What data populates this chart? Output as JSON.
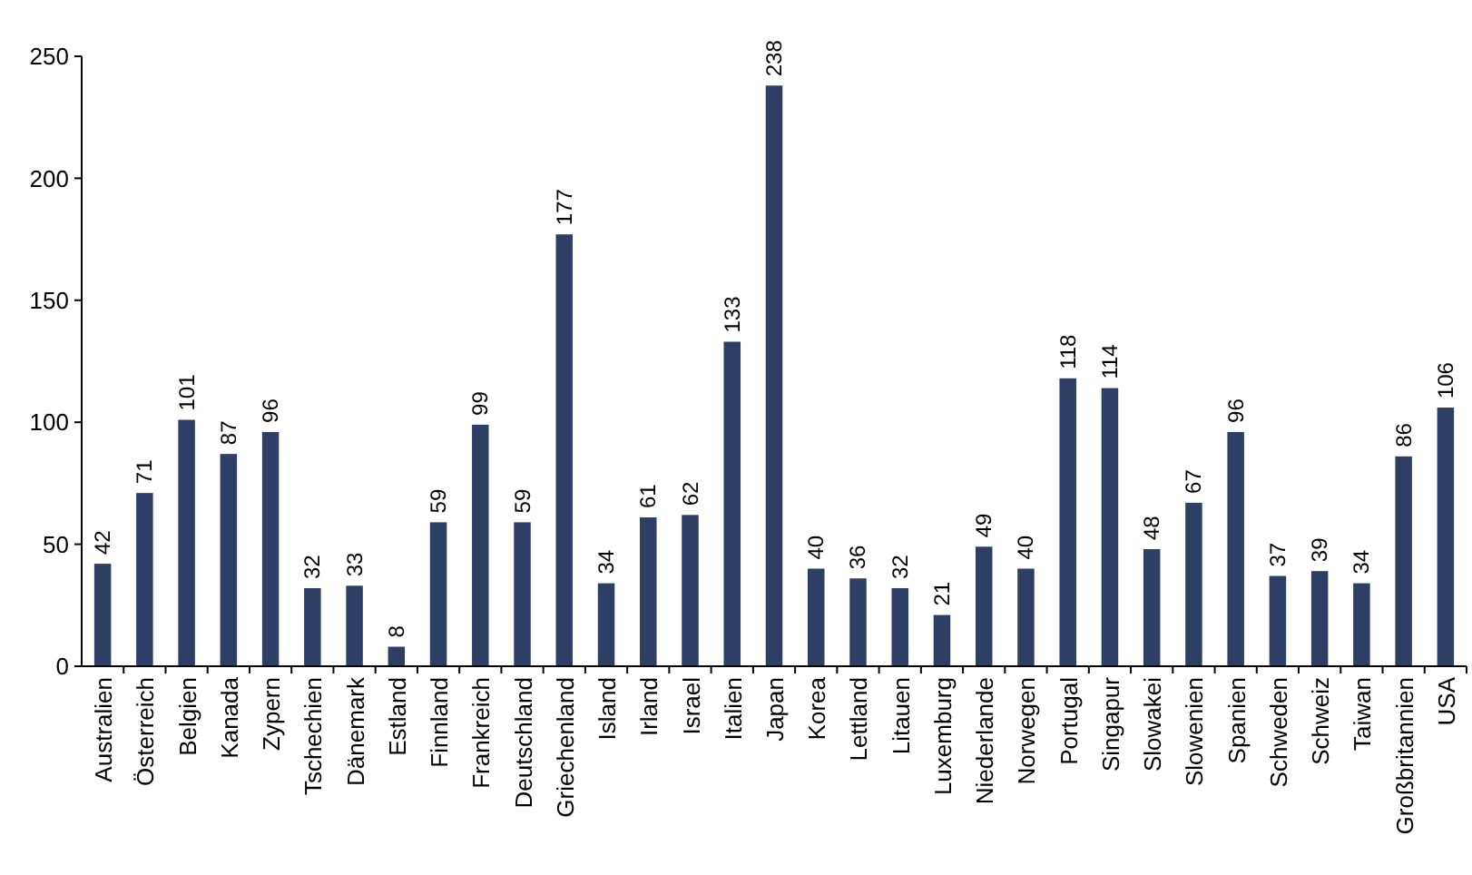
{
  "chart_data": {
    "type": "bar",
    "categories": [
      "Australien",
      "Österreich",
      "Belgien",
      "Kanada",
      "Zypern",
      "Tschechien",
      "Dänemark",
      "Estland",
      "Finnland",
      "Frankreich",
      "Deutschland",
      "Griechenland",
      "Island",
      "Irland",
      "Israel",
      "Italien",
      "Japan",
      "Korea",
      "Lettland",
      "Litauen",
      "Luxemburg",
      "Niederlande",
      "Norwegen",
      "Portugal",
      "Singapur",
      "Slowakei",
      "Slowenien",
      "Spanien",
      "Schweden",
      "Schweiz",
      "Taiwan",
      "Großbritannien",
      "USA"
    ],
    "values": [
      42,
      71,
      101,
      87,
      96,
      32,
      33,
      8,
      59,
      99,
      59,
      177,
      34,
      61,
      62,
      133,
      238,
      40,
      36,
      32,
      21,
      49,
      40,
      118,
      114,
      48,
      67,
      96,
      37,
      39,
      34,
      86,
      106
    ],
    "color": "#2e3f66",
    "ylim": [
      0,
      250
    ],
    "yticks": [
      0,
      50,
      100,
      150,
      200,
      250
    ],
    "data_labels": true,
    "grid": false
  }
}
